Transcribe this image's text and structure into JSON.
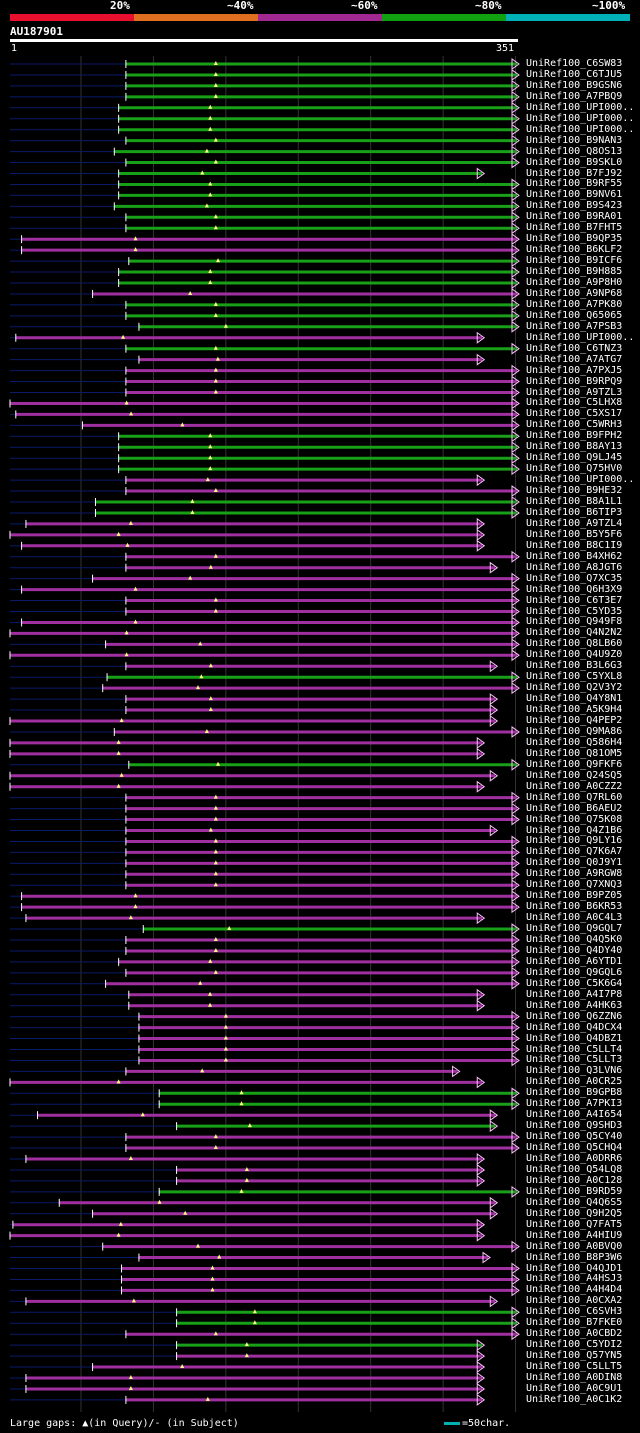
{
  "legend": {
    "segments": [
      {
        "label": "20%",
        "color": "#e8102e"
      },
      {
        "label": "~40%",
        "color": "#e07020"
      },
      {
        "label": "~60%",
        "color": "#a02890"
      },
      {
        "label": "~80%",
        "color": "#10a010"
      },
      {
        "label": "~100%",
        "color": "#00b0b8"
      }
    ]
  },
  "query": {
    "id": "AU187901",
    "start_label": "1",
    "end_label": "351"
  },
  "footer": {
    "gap_note": "Large gaps: ▲(in Query)/- (in Subject)",
    "scale_note": "=50char."
  },
  "colors": {
    "green": "#18a018",
    "magenta": "#a030a0",
    "stub": "#0a1a6a",
    "gridline": "#333333",
    "arrow": "#ffc0ff",
    "gap_marker": "#ffff80"
  },
  "chart_data": {
    "type": "alignment",
    "query_length": 351,
    "hits": [
      {
        "name": "UniRef100_C6SW83",
        "start": 81,
        "end": 351,
        "color": "green"
      },
      {
        "name": "UniRef100_C6TJU5",
        "start": 81,
        "end": 351,
        "color": "green"
      },
      {
        "name": "UniRef100_B9GSN6",
        "start": 81,
        "end": 351,
        "color": "green"
      },
      {
        "name": "UniRef100_A7PBQ9",
        "start": 81,
        "end": 351,
        "color": "green"
      },
      {
        "name": "UniRef100_UPI000..",
        "start": 76,
        "end": 351,
        "color": "green"
      },
      {
        "name": "UniRef100_UPI000..",
        "start": 76,
        "end": 351,
        "color": "green"
      },
      {
        "name": "UniRef100_UPI000..",
        "start": 76,
        "end": 351,
        "color": "green"
      },
      {
        "name": "UniRef100_B9NAN3",
        "start": 81,
        "end": 351,
        "color": "green"
      },
      {
        "name": "UniRef100_Q8OS13",
        "start": 73,
        "end": 351,
        "color": "green"
      },
      {
        "name": "UniRef100_B9SKL0",
        "start": 81,
        "end": 351,
        "color": "green"
      },
      {
        "name": "UniRef100_B7FJ92",
        "start": 76,
        "end": 327,
        "color": "green"
      },
      {
        "name": "UniRef100_B9RF55",
        "start": 76,
        "end": 351,
        "color": "green"
      },
      {
        "name": "UniRef100_B9NV61",
        "start": 76,
        "end": 351,
        "color": "green"
      },
      {
        "name": "UniRef100_B9S423",
        "start": 73,
        "end": 351,
        "color": "green"
      },
      {
        "name": "UniRef100_B9RA01",
        "start": 81,
        "end": 351,
        "color": "green"
      },
      {
        "name": "UniRef100_B7FHT5",
        "start": 81,
        "end": 351,
        "color": "green"
      },
      {
        "name": "UniRef100_B9QP35",
        "start": 9,
        "end": 351,
        "color": "magenta"
      },
      {
        "name": "UniRef100_B6KLF2",
        "start": 9,
        "end": 351,
        "color": "magenta"
      },
      {
        "name": "UniRef100_B9ICF6",
        "start": 83,
        "end": 351,
        "color": "green"
      },
      {
        "name": "UniRef100_B9H885",
        "start": 76,
        "end": 351,
        "color": "green"
      },
      {
        "name": "UniRef100_A9P8H0",
        "start": 76,
        "end": 351,
        "color": "green"
      },
      {
        "name": "UniRef100_A9NP68",
        "start": 58,
        "end": 351,
        "color": "magenta"
      },
      {
        "name": "UniRef100_A7PK80",
        "start": 81,
        "end": 351,
        "color": "green"
      },
      {
        "name": "UniRef100_Q65065",
        "start": 81,
        "end": 351,
        "color": "green"
      },
      {
        "name": "UniRef100_A7PSB3",
        "start": 90,
        "end": 351,
        "color": "green"
      },
      {
        "name": "UniRef100_UPI000..",
        "start": 5,
        "end": 327,
        "color": "magenta"
      },
      {
        "name": "UniRef100_C6TNZ3",
        "start": 81,
        "end": 351,
        "color": "green"
      },
      {
        "name": "UniRef100_A7ATG7",
        "start": 90,
        "end": 327,
        "color": "magenta"
      },
      {
        "name": "UniRef100_A7PXJ5",
        "start": 81,
        "end": 351,
        "color": "magenta"
      },
      {
        "name": "UniRef100_B9RPQ9",
        "start": 81,
        "end": 351,
        "color": "magenta"
      },
      {
        "name": "UniRef100_A9TZL3",
        "start": 81,
        "end": 351,
        "color": "magenta"
      },
      {
        "name": "UniRef100_C5LHX8",
        "start": 1,
        "end": 351,
        "color": "magenta"
      },
      {
        "name": "UniRef100_C5XS17",
        "start": 5,
        "end": 351,
        "color": "magenta"
      },
      {
        "name": "UniRef100_C5WRH3",
        "start": 51,
        "end": 351,
        "color": "magenta"
      },
      {
        "name": "UniRef100_B9FPH2",
        "start": 76,
        "end": 351,
        "color": "green"
      },
      {
        "name": "UniRef100_B8AY13",
        "start": 76,
        "end": 351,
        "color": "green"
      },
      {
        "name": "UniRef100_Q9LJ45",
        "start": 76,
        "end": 351,
        "color": "green"
      },
      {
        "name": "UniRef100_Q75HV0",
        "start": 76,
        "end": 351,
        "color": "green"
      },
      {
        "name": "UniRef100_UPI000..",
        "start": 81,
        "end": 327,
        "color": "magenta"
      },
      {
        "name": "UniRef100_B9HE32",
        "start": 81,
        "end": 351,
        "color": "magenta"
      },
      {
        "name": "UniRef100_B8A1L1",
        "start": 60,
        "end": 351,
        "color": "green"
      },
      {
        "name": "UniRef100_B6TIP3",
        "start": 60,
        "end": 351,
        "color": "green"
      },
      {
        "name": "UniRef100_A9TZL4",
        "start": 12,
        "end": 327,
        "color": "magenta"
      },
      {
        "name": "UniRef100_B5Y5F6",
        "start": 1,
        "end": 327,
        "color": "magenta"
      },
      {
        "name": "UniRef100_B8C1I9",
        "start": 9,
        "end": 327,
        "color": "magenta"
      },
      {
        "name": "UniRef100_B4XH62",
        "start": 81,
        "end": 351,
        "color": "magenta"
      },
      {
        "name": "UniRef100_A8JGT6",
        "start": 81,
        "end": 336,
        "color": "magenta"
      },
      {
        "name": "UniRef100_Q7XC35",
        "start": 58,
        "end": 351,
        "color": "magenta"
      },
      {
        "name": "UniRef100_Q6H3X9",
        "start": 9,
        "end": 351,
        "color": "magenta"
      },
      {
        "name": "UniRef100_C6T3E7",
        "start": 81,
        "end": 351,
        "color": "magenta"
      },
      {
        "name": "UniRef100_C5YD35",
        "start": 81,
        "end": 351,
        "color": "magenta"
      },
      {
        "name": "UniRef100_Q949F8",
        "start": 9,
        "end": 351,
        "color": "magenta"
      },
      {
        "name": "UniRef100_Q4N2N2",
        "start": 1,
        "end": 351,
        "color": "magenta"
      },
      {
        "name": "UniRef100_Q8LB60",
        "start": 67,
        "end": 351,
        "color": "magenta"
      },
      {
        "name": "UniRef100_Q4U9Z0",
        "start": 1,
        "end": 351,
        "color": "magenta"
      },
      {
        "name": "UniRef100_B3L6G3",
        "start": 81,
        "end": 336,
        "color": "magenta"
      },
      {
        "name": "UniRef100_C5YXL8",
        "start": 68,
        "end": 351,
        "color": "green"
      },
      {
        "name": "UniRef100_Q2V3Y2",
        "start": 65,
        "end": 351,
        "color": "magenta"
      },
      {
        "name": "UniRef100_Q4Y8N1",
        "start": 81,
        "end": 336,
        "color": "magenta"
      },
      {
        "name": "UniRef100_A5K9H4",
        "start": 81,
        "end": 336,
        "color": "magenta"
      },
      {
        "name": "UniRef100_Q4PEP2",
        "start": 1,
        "end": 336,
        "color": "magenta"
      },
      {
        "name": "UniRef100_Q9MA86",
        "start": 73,
        "end": 351,
        "color": "magenta"
      },
      {
        "name": "UniRef100_Q586H4",
        "start": 1,
        "end": 327,
        "color": "magenta"
      },
      {
        "name": "UniRef100_Q81OM5",
        "start": 1,
        "end": 327,
        "color": "magenta"
      },
      {
        "name": "UniRef100_Q9FKF6",
        "start": 83,
        "end": 351,
        "color": "green"
      },
      {
        "name": "UniRef100_Q24SQ5",
        "start": 1,
        "end": 336,
        "color": "magenta"
      },
      {
        "name": "UniRef100_A0CZZ2",
        "start": 1,
        "end": 327,
        "color": "magenta"
      },
      {
        "name": "UniRef100_Q7RL60",
        "start": 81,
        "end": 351,
        "color": "magenta"
      },
      {
        "name": "UniRef100_B6AEU2",
        "start": 81,
        "end": 351,
        "color": "magenta"
      },
      {
        "name": "UniRef100_Q75K08",
        "start": 81,
        "end": 351,
        "color": "magenta"
      },
      {
        "name": "UniRef100_Q4Z1B6",
        "start": 81,
        "end": 336,
        "color": "magenta"
      },
      {
        "name": "UniRef100_Q9LY16",
        "start": 81,
        "end": 351,
        "color": "magenta"
      },
      {
        "name": "UniRef100_Q7K6A7",
        "start": 81,
        "end": 351,
        "color": "magenta"
      },
      {
        "name": "UniRef100_Q0J9Y1",
        "start": 81,
        "end": 351,
        "color": "magenta"
      },
      {
        "name": "UniRef100_A9RGW8",
        "start": 81,
        "end": 351,
        "color": "magenta"
      },
      {
        "name": "UniRef100_Q7XNQ3",
        "start": 81,
        "end": 351,
        "color": "magenta"
      },
      {
        "name": "UniRef100_B9PZ05",
        "start": 9,
        "end": 351,
        "color": "magenta"
      },
      {
        "name": "UniRef100_B6KR53",
        "start": 9,
        "end": 351,
        "color": "magenta"
      },
      {
        "name": "UniRef100_A0C4L3",
        "start": 12,
        "end": 327,
        "color": "magenta"
      },
      {
        "name": "UniRef100_Q9GQL7",
        "start": 93,
        "end": 351,
        "color": "green"
      },
      {
        "name": "UniRef100_Q4Q5K0",
        "start": 81,
        "end": 351,
        "color": "magenta"
      },
      {
        "name": "UniRef100_Q4DY40",
        "start": 81,
        "end": 351,
        "color": "magenta"
      },
      {
        "name": "UniRef100_A6YTD1",
        "start": 76,
        "end": 351,
        "color": "magenta"
      },
      {
        "name": "UniRef100_Q9GQL6",
        "start": 81,
        "end": 351,
        "color": "magenta"
      },
      {
        "name": "UniRef100_C5K6G4",
        "start": 67,
        "end": 351,
        "color": "magenta"
      },
      {
        "name": "UniRef100_A4I7P8",
        "start": 83,
        "end": 327,
        "color": "magenta"
      },
      {
        "name": "UniRef100_A4HK63",
        "start": 83,
        "end": 327,
        "color": "magenta"
      },
      {
        "name": "UniRef100_Q6ZZN6",
        "start": 90,
        "end": 351,
        "color": "magenta"
      },
      {
        "name": "UniRef100_Q4DCX4",
        "start": 90,
        "end": 351,
        "color": "magenta"
      },
      {
        "name": "UniRef100_Q4DBZ1",
        "start": 90,
        "end": 351,
        "color": "magenta"
      },
      {
        "name": "UniRef100_C5LLT4",
        "start": 90,
        "end": 351,
        "color": "magenta"
      },
      {
        "name": "UniRef100_C5LLT3",
        "start": 90,
        "end": 351,
        "color": "magenta"
      },
      {
        "name": "UniRef100_Q3LVN6",
        "start": 81,
        "end": 310,
        "color": "magenta"
      },
      {
        "name": "UniRef100_A0CR25",
        "start": 1,
        "end": 327,
        "color": "magenta"
      },
      {
        "name": "UniRef100_B9GPB8",
        "start": 104,
        "end": 351,
        "color": "green"
      },
      {
        "name": "UniRef100_A7PKI3",
        "start": 104,
        "end": 351,
        "color": "green"
      },
      {
        "name": "UniRef100_A4I654",
        "start": 20,
        "end": 336,
        "color": "magenta"
      },
      {
        "name": "UniRef100_Q9SHD3",
        "start": 116,
        "end": 336,
        "color": "green"
      },
      {
        "name": "UniRef100_Q5CY40",
        "start": 81,
        "end": 351,
        "color": "magenta"
      },
      {
        "name": "UniRef100_Q5CHQ4",
        "start": 81,
        "end": 351,
        "color": "magenta"
      },
      {
        "name": "UniRef100_A0DRR6",
        "start": 12,
        "end": 327,
        "color": "magenta"
      },
      {
        "name": "UniRef100_Q54LQ8",
        "start": 116,
        "end": 327,
        "color": "magenta"
      },
      {
        "name": "UniRef100_A0C128",
        "start": 116,
        "end": 327,
        "color": "magenta"
      },
      {
        "name": "UniRef100_B9RD59",
        "start": 104,
        "end": 351,
        "color": "green"
      },
      {
        "name": "UniRef100_Q4Q6S5",
        "start": 35,
        "end": 336,
        "color": "magenta"
      },
      {
        "name": "UniRef100_Q9H2Q5",
        "start": 58,
        "end": 336,
        "color": "magenta"
      },
      {
        "name": "UniRef100_Q7FAT5",
        "start": 3,
        "end": 327,
        "color": "magenta"
      },
      {
        "name": "UniRef100_A4HIU9",
        "start": 1,
        "end": 327,
        "color": "magenta"
      },
      {
        "name": "UniRef100_A0BVQ0",
        "start": 65,
        "end": 351,
        "color": "magenta"
      },
      {
        "name": "UniRef100_B8P3W6",
        "start": 90,
        "end": 331,
        "color": "magenta"
      },
      {
        "name": "UniRef100_Q4QJD1",
        "start": 78,
        "end": 351,
        "color": "magenta"
      },
      {
        "name": "UniRef100_A4HSJ3",
        "start": 78,
        "end": 351,
        "color": "magenta"
      },
      {
        "name": "UniRef100_A4H4D4",
        "start": 78,
        "end": 351,
        "color": "magenta"
      },
      {
        "name": "UniRef100_A0CXA2",
        "start": 12,
        "end": 336,
        "color": "magenta"
      },
      {
        "name": "UniRef100_C6SVH3",
        "start": 116,
        "end": 351,
        "color": "green"
      },
      {
        "name": "UniRef100_B7FKE0",
        "start": 116,
        "end": 351,
        "color": "green"
      },
      {
        "name": "UniRef100_A0CBD2",
        "start": 81,
        "end": 351,
        "color": "magenta"
      },
      {
        "name": "UniRef100_C5YDI2",
        "start": 116,
        "end": 327,
        "color": "green"
      },
      {
        "name": "UniRef100_Q57YN5",
        "start": 116,
        "end": 327,
        "color": "magenta"
      },
      {
        "name": "UniRef100_C5LLT5",
        "start": 58,
        "end": 327,
        "color": "magenta"
      },
      {
        "name": "UniRef100_A0DIN8",
        "start": 12,
        "end": 327,
        "color": "magenta"
      },
      {
        "name": "UniRef100_A0C9U1",
        "start": 12,
        "end": 327,
        "color": "magenta"
      },
      {
        "name": "UniRef100_A0C1K2",
        "start": 81,
        "end": 327,
        "color": "magenta"
      }
    ]
  }
}
